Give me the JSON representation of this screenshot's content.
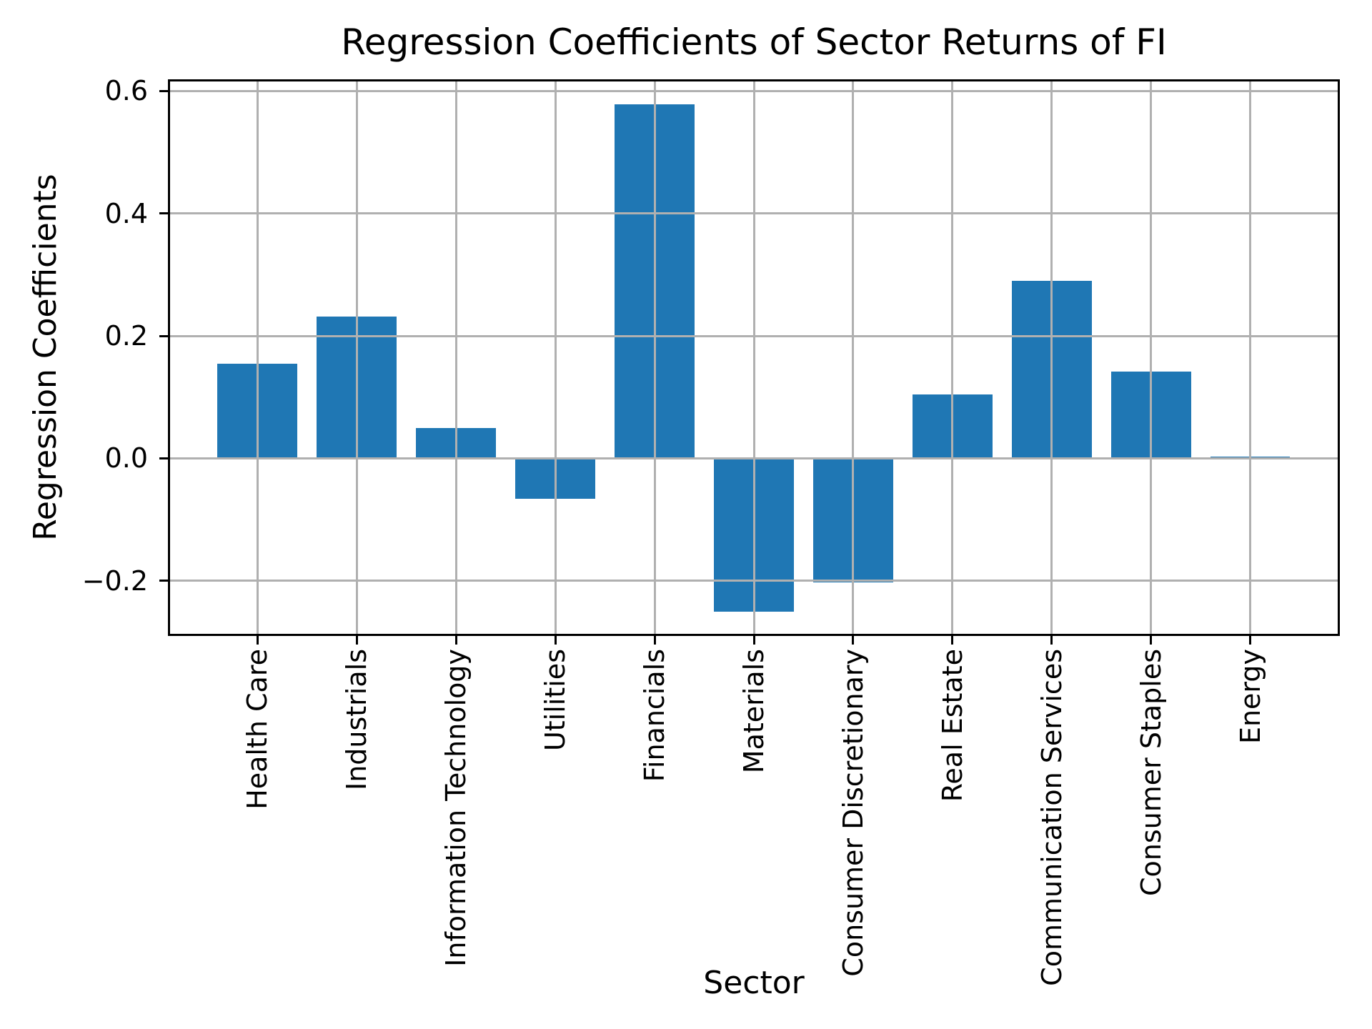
{
  "chart_data": {
    "type": "bar",
    "title": "Regression Coefficients of Sector Returns of FI",
    "xlabel": "Sector",
    "ylabel": "Regression Coefficients",
    "categories": [
      "Health Care",
      "Industrials",
      "Information Technology",
      "Utilities",
      "Financials",
      "Materials",
      "Consumer Discretionary",
      "Real Estate",
      "Communication Services",
      "Consumer Staples",
      "Energy"
    ],
    "values": [
      0.155,
      0.232,
      0.05,
      -0.066,
      0.578,
      -0.25,
      -0.203,
      0.104,
      0.29,
      0.142,
      0.003
    ],
    "ytick_values": [
      0.6,
      0.4,
      0.2,
      0.0,
      -0.2
    ],
    "ytick_labels": [
      "0.6",
      "0.4",
      "0.2",
      "0.0",
      "−0.2"
    ],
    "ylim": [
      -0.29,
      0.619
    ],
    "xlim": [
      -0.9,
      10.9
    ],
    "bar_width": 0.8,
    "bar_color": "#1f77b4",
    "grid_color": "#b0b0b0",
    "axis_color": "#000000",
    "background_color": "#ffffff",
    "grid": "on, drawn above bars",
    "legend": "none"
  }
}
